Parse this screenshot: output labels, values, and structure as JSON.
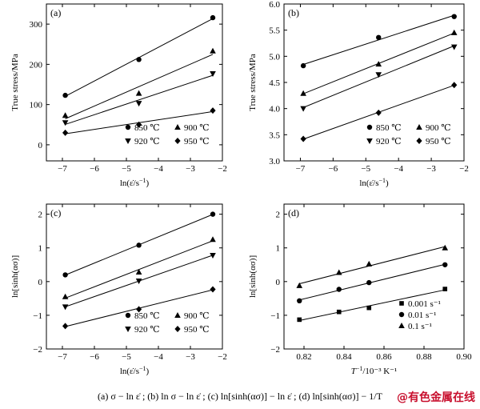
{
  "chart_data": [
    {
      "id": "a",
      "type": "scatter",
      "panel_label": "(a)",
      "ylabel": "True stress/MPa",
      "xlabel_base": "ln(ε̇/s",
      "xlabel_exp": "−1",
      "xlabel_tail": ")",
      "xlim": [
        -7.5,
        -2
      ],
      "ylim": [
        -40,
        350
      ],
      "xticks": [
        -7,
        -6,
        -5,
        -4,
        -3,
        -2
      ],
      "yticks": [
        0,
        100,
        200,
        300
      ],
      "xtick_labels": [
        "−7",
        "−6",
        "−5",
        "−4",
        "−3",
        "−2"
      ],
      "ytick_labels": [
        "0",
        "100",
        "200",
        "300"
      ],
      "x": [
        -6.91,
        -4.61,
        -2.3
      ],
      "legend_position": "bottom-right",
      "series": [
        {
          "name": "850 ℃",
          "marker": "circle",
          "values": [
            123,
            212,
            316
          ]
        },
        {
          "name": "900 ℃",
          "marker": "triangle",
          "values": [
            73,
            128,
            233
          ]
        },
        {
          "name": "920 ℃",
          "marker": "tri-down",
          "values": [
            55,
            103,
            177
          ]
        },
        {
          "name": "950 ℃",
          "marker": "diamond",
          "values": [
            30,
            50,
            85
          ]
        }
      ]
    },
    {
      "id": "b",
      "type": "scatter",
      "panel_label": "(b)",
      "ylabel": "True stress/MPa",
      "xlabel_base": "ln(ε̇/s",
      "xlabel_exp": "−1",
      "xlabel_tail": ")",
      "xlim": [
        -7.5,
        -2
      ],
      "ylim": [
        3,
        6
      ],
      "xticks": [
        -7,
        -6,
        -5,
        -4,
        -3,
        -2
      ],
      "yticks": [
        3.0,
        3.5,
        4.0,
        4.5,
        5.0,
        5.5,
        6.0
      ],
      "xtick_labels": [
        "−7",
        "−6",
        "−5",
        "−4",
        "−3",
        "−2"
      ],
      "ytick_labels": [
        "3.0",
        "3.5",
        "4.0",
        "4.5",
        "5.0",
        "5.5",
        "6.0"
      ],
      "x": [
        -6.91,
        -4.61,
        -2.3
      ],
      "legend_position": "bottom-right",
      "series": [
        {
          "name": "850 ℃",
          "marker": "circle",
          "values": [
            4.82,
            5.36,
            5.76
          ]
        },
        {
          "name": "900 ℃",
          "marker": "triangle",
          "values": [
            4.29,
            4.85,
            5.45
          ]
        },
        {
          "name": "920 ℃",
          "marker": "tri-down",
          "values": [
            4.0,
            4.65,
            5.18
          ]
        },
        {
          "name": "950 ℃",
          "marker": "diamond",
          "values": [
            3.42,
            3.92,
            4.45
          ]
        }
      ]
    },
    {
      "id": "c",
      "type": "scatter",
      "panel_label": "(c)",
      "ylabel": "ln[sinh(ασ)]",
      "xlabel_base": "ln(ε̇/s",
      "xlabel_exp": "−1",
      "xlabel_tail": ")",
      "xlim": [
        -7.5,
        -2
      ],
      "ylim": [
        -2,
        2.3
      ],
      "xticks": [
        -7,
        -6,
        -5,
        -4,
        -3,
        -2
      ],
      "yticks": [
        -2,
        -1,
        0,
        1,
        2
      ],
      "xtick_labels": [
        "−7",
        "−6",
        "−5",
        "−4",
        "−3",
        "−2"
      ],
      "ytick_labels": [
        "−2",
        "−1",
        "0",
        "1",
        "2"
      ],
      "x": [
        -6.91,
        -4.61,
        -2.3
      ],
      "legend_position": "bottom-right",
      "series": [
        {
          "name": "850 ℃",
          "marker": "circle",
          "values": [
            0.2,
            1.08,
            2.0
          ]
        },
        {
          "name": "900 ℃",
          "marker": "triangle",
          "values": [
            -0.45,
            0.28,
            1.25
          ]
        },
        {
          "name": "920 ℃",
          "marker": "tri-down",
          "values": [
            -0.75,
            0.02,
            0.78
          ]
        },
        {
          "name": "950 ℃",
          "marker": "diamond",
          "values": [
            -1.32,
            -0.82,
            -0.23
          ]
        }
      ]
    },
    {
      "id": "d",
      "type": "scatter",
      "panel_label": "(d)",
      "ylabel": "ln[sinh(ασ)]",
      "xlabel_base": "T",
      "xlabel_exp": "−1",
      "xlabel_tail": "/10⁻³ K⁻¹",
      "xlim": [
        0.81,
        0.9
      ],
      "ylim": [
        -2,
        2.3
      ],
      "xticks": [
        0.82,
        0.84,
        0.86,
        0.88,
        0.9
      ],
      "yticks": [
        -2,
        -1,
        0,
        1,
        2
      ],
      "xtick_labels": [
        "0.82",
        "0.84",
        "0.86",
        "0.88",
        "0.90"
      ],
      "ytick_labels": [
        "−2",
        "−1",
        "0",
        "1",
        "2"
      ],
      "x": [
        0.8177,
        0.8375,
        0.8525,
        0.8905
      ],
      "legend_position": "bottom-right",
      "series": [
        {
          "name": "0.001 s⁻¹",
          "marker": "square",
          "values": [
            -1.13,
            -0.9,
            -0.78,
            -0.22
          ]
        },
        {
          "name": "0.01 s⁻¹",
          "marker": "circle",
          "values": [
            -0.57,
            -0.23,
            -0.03,
            0.5
          ]
        },
        {
          "name": "0.1 s⁻¹",
          "marker": "triangle",
          "values": [
            -0.12,
            0.27,
            0.52,
            1.0
          ]
        }
      ]
    }
  ],
  "caption": {
    "text": "(a)  σ − ln ε̇ ; (b)  ln σ − ln ε̇ ; (c)  ln[sinh(ασ)] − ln ε̇ ; (d)  ln[sinh(ασ)] − 1/T"
  },
  "watermark": "@有色金属在线"
}
